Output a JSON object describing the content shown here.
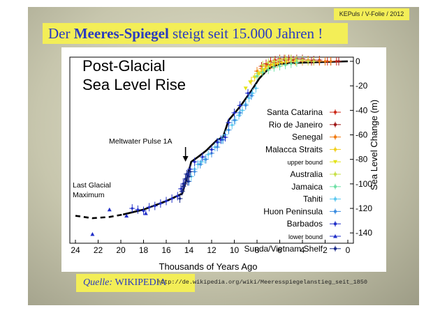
{
  "slide": {
    "tag": "KEPuls / V-Folie / 2012",
    "headline_pre": "Der ",
    "headline_bold": "Meeres-Spiegel",
    "headline_post": " steigt seit 15.000 Jahren !",
    "source_label": "Quelle:",
    "source_name": "WIKIPEDIA",
    "source_url": "http://de.wikipedia.org/wiki/Meeresspiegelanstieg_seit_1850"
  },
  "chart_data": {
    "type": "scatter",
    "title_line1": "Post-Glacial",
    "title_line2": "Sea Level Rise",
    "xlabel": "Thousands of Years Ago",
    "ylabel": "Sea Level Change (m)",
    "xlim": [
      24,
      0
    ],
    "ylim": [
      -145,
      0
    ],
    "x_ticks": [
      "24",
      "22",
      "20",
      "18",
      "16",
      "14",
      "12",
      "10",
      "8",
      "6",
      "4",
      "2",
      "0"
    ],
    "y_ticks": [
      "0",
      "-20",
      "-40",
      "-60",
      "-80",
      "-100",
      "-120",
      "-140"
    ],
    "annotations": {
      "mwp_label": "Meltwater Pulse 1A",
      "mwp_x": 14.3,
      "lgm_line1": "Last Glacial",
      "lgm_line2": "Maximum"
    },
    "trend": {
      "dashed": [
        [
          24,
          -126
        ],
        [
          22.5,
          -128
        ],
        [
          21,
          -127
        ],
        [
          19.8,
          -125
        ]
      ],
      "solid": [
        [
          19.8,
          -125
        ],
        [
          18,
          -121
        ],
        [
          16,
          -114
        ],
        [
          14.6,
          -108
        ],
        [
          14.2,
          -96
        ],
        [
          13.8,
          -82
        ],
        [
          13.2,
          -78
        ],
        [
          12.5,
          -73
        ],
        [
          11.5,
          -64
        ],
        [
          11,
          -62
        ],
        [
          10.5,
          -48
        ],
        [
          9.5,
          -37
        ],
        [
          8.5,
          -24
        ],
        [
          7.8,
          -14
        ],
        [
          7,
          -6
        ],
        [
          6,
          -2
        ],
        [
          4,
          -1
        ],
        [
          0,
          0
        ]
      ]
    },
    "series": [
      {
        "name": "Santa Catarina",
        "color": "#cc2a1a",
        "marker": "cross",
        "x": [
          7.6,
          7.2,
          6.8,
          6.4,
          6.0,
          5.6,
          5.2,
          4.8,
          4.0,
          3.2,
          2.5,
          1.8,
          1.0
        ],
        "y": [
          -4,
          -2,
          0,
          1,
          2,
          2,
          2,
          1,
          1,
          0,
          0,
          0,
          0
        ]
      },
      {
        "name": "Rio de Janeiro",
        "color": "#a01818",
        "marker": "cross",
        "x": [
          7.0,
          6.5,
          6.0,
          5.5,
          5.0,
          4.5,
          4.0,
          3.5,
          3.0,
          2.5,
          2.0,
          1.5,
          0.8
        ],
        "y": [
          -3,
          -1,
          0,
          1,
          2,
          2,
          2,
          1,
          1,
          1,
          0,
          0,
          0
        ]
      },
      {
        "name": "Senegal",
        "color": "#f07a10",
        "marker": "cross",
        "x": [
          8.0,
          7.6,
          7.2,
          6.8,
          6.4,
          6.0,
          5.5,
          5.0,
          4.6,
          4.0,
          3.5,
          3.0,
          2.5,
          2.0,
          1.5
        ],
        "y": [
          -8,
          -6,
          -4,
          -3,
          -2,
          -1,
          -1,
          0,
          0,
          0,
          1,
          0,
          0,
          0,
          0
        ]
      },
      {
        "name": "Malacca Straits",
        "color": "#f2cf1c",
        "marker": "cross",
        "x": [
          8.5,
          8.2,
          7.9,
          7.6,
          7.3,
          7.0,
          6.6,
          6.2,
          5.8,
          5.4,
          5.0,
          4.6
        ],
        "y": [
          -16,
          -13,
          -10,
          -8,
          -6,
          -4,
          -3,
          -2,
          -1,
          0,
          0,
          0
        ]
      },
      {
        "name": "upper bound",
        "color": "#e3e318",
        "marker": "triangle-down",
        "x": [
          9.0,
          8.6,
          8.2,
          7.8,
          7.4,
          7.0,
          6.6
        ],
        "y": [
          -22,
          -17,
          -13,
          -10,
          -7,
          -5,
          -3
        ]
      },
      {
        "name": "Australia",
        "color": "#c8e04a",
        "marker": "cross",
        "x": [
          7.5,
          7.0,
          6.5,
          6.0,
          5.5,
          5.0,
          4.5,
          4.0,
          3.5,
          3.0
        ],
        "y": [
          -3,
          -1,
          0,
          1,
          2,
          2,
          1,
          1,
          0,
          0
        ]
      },
      {
        "name": "Jamaica",
        "color": "#6fe0a6",
        "marker": "cross",
        "x": [
          8.0,
          7.5,
          7.0,
          6.5,
          6.0,
          5.5,
          5.0,
          4.5
        ],
        "y": [
          -12,
          -9,
          -7,
          -5,
          -4,
          -3,
          -2,
          -1
        ]
      },
      {
        "name": "Tahiti",
        "color": "#5cc8f0",
        "marker": "cross",
        "x": [
          13.8,
          13.5,
          13.2,
          12.9,
          12.6,
          12.3,
          12.0,
          11.7,
          11.4,
          11.1,
          10.8,
          10.5,
          10.2,
          9.9,
          9.6,
          9.3,
          9.0,
          8.7,
          8.4,
          8.1
        ],
        "y": [
          -94,
          -88,
          -84,
          -82,
          -80,
          -76,
          -72,
          -70,
          -66,
          -64,
          -60,
          -56,
          -52,
          -48,
          -44,
          -40,
          -35,
          -30,
          -26,
          -22
        ]
      },
      {
        "name": "Huon Peninsula",
        "color": "#3d8de0",
        "marker": "cross",
        "x": [
          14.0,
          13.5,
          13.0,
          12.5,
          12.0,
          11.5,
          11.0,
          10.5,
          10.0,
          9.5,
          9.0,
          8.5
        ],
        "y": [
          -98,
          -90,
          -84,
          -80,
          -75,
          -70,
          -64,
          -56,
          -48,
          -42,
          -36,
          -28
        ]
      },
      {
        "name": "Barbados",
        "color": "#2230c8",
        "marker": "cross",
        "x": [
          19.0,
          18.5,
          18.0,
          17.5,
          17.0,
          16.5,
          16.0,
          15.5,
          15.0,
          14.7,
          14.5,
          14.3,
          14.1,
          13.9,
          13.5,
          12.8,
          12.0,
          11.5,
          11.2,
          10.8,
          10.5,
          10.0,
          9.5,
          8.8
        ],
        "y": [
          -120,
          -121,
          -122,
          -119,
          -118,
          -116,
          -114,
          -112,
          -110,
          -104,
          -100,
          -96,
          -92,
          -88,
          -82,
          -78,
          -72,
          -66,
          -64,
          -62,
          -50,
          -42,
          -36,
          -26
        ]
      },
      {
        "name": "lower bound",
        "color": "#2230c8",
        "marker": "triangle-up",
        "x": [
          22.5,
          21.0,
          19.5,
          17.8
        ],
        "y": [
          -141,
          -121,
          -126,
          -124
        ]
      },
      {
        "name": "Sunda/Vietnam Shelf",
        "color": "#1a2a8a",
        "marker": "cross",
        "x": [
          14.8,
          14.6,
          14.5,
          14.4,
          14.3,
          14.2,
          14.1,
          14.0,
          13.9
        ],
        "y": [
          -112,
          -106,
          -102,
          -100,
          -96,
          -92,
          -98,
          -94,
          -90
        ]
      }
    ]
  }
}
